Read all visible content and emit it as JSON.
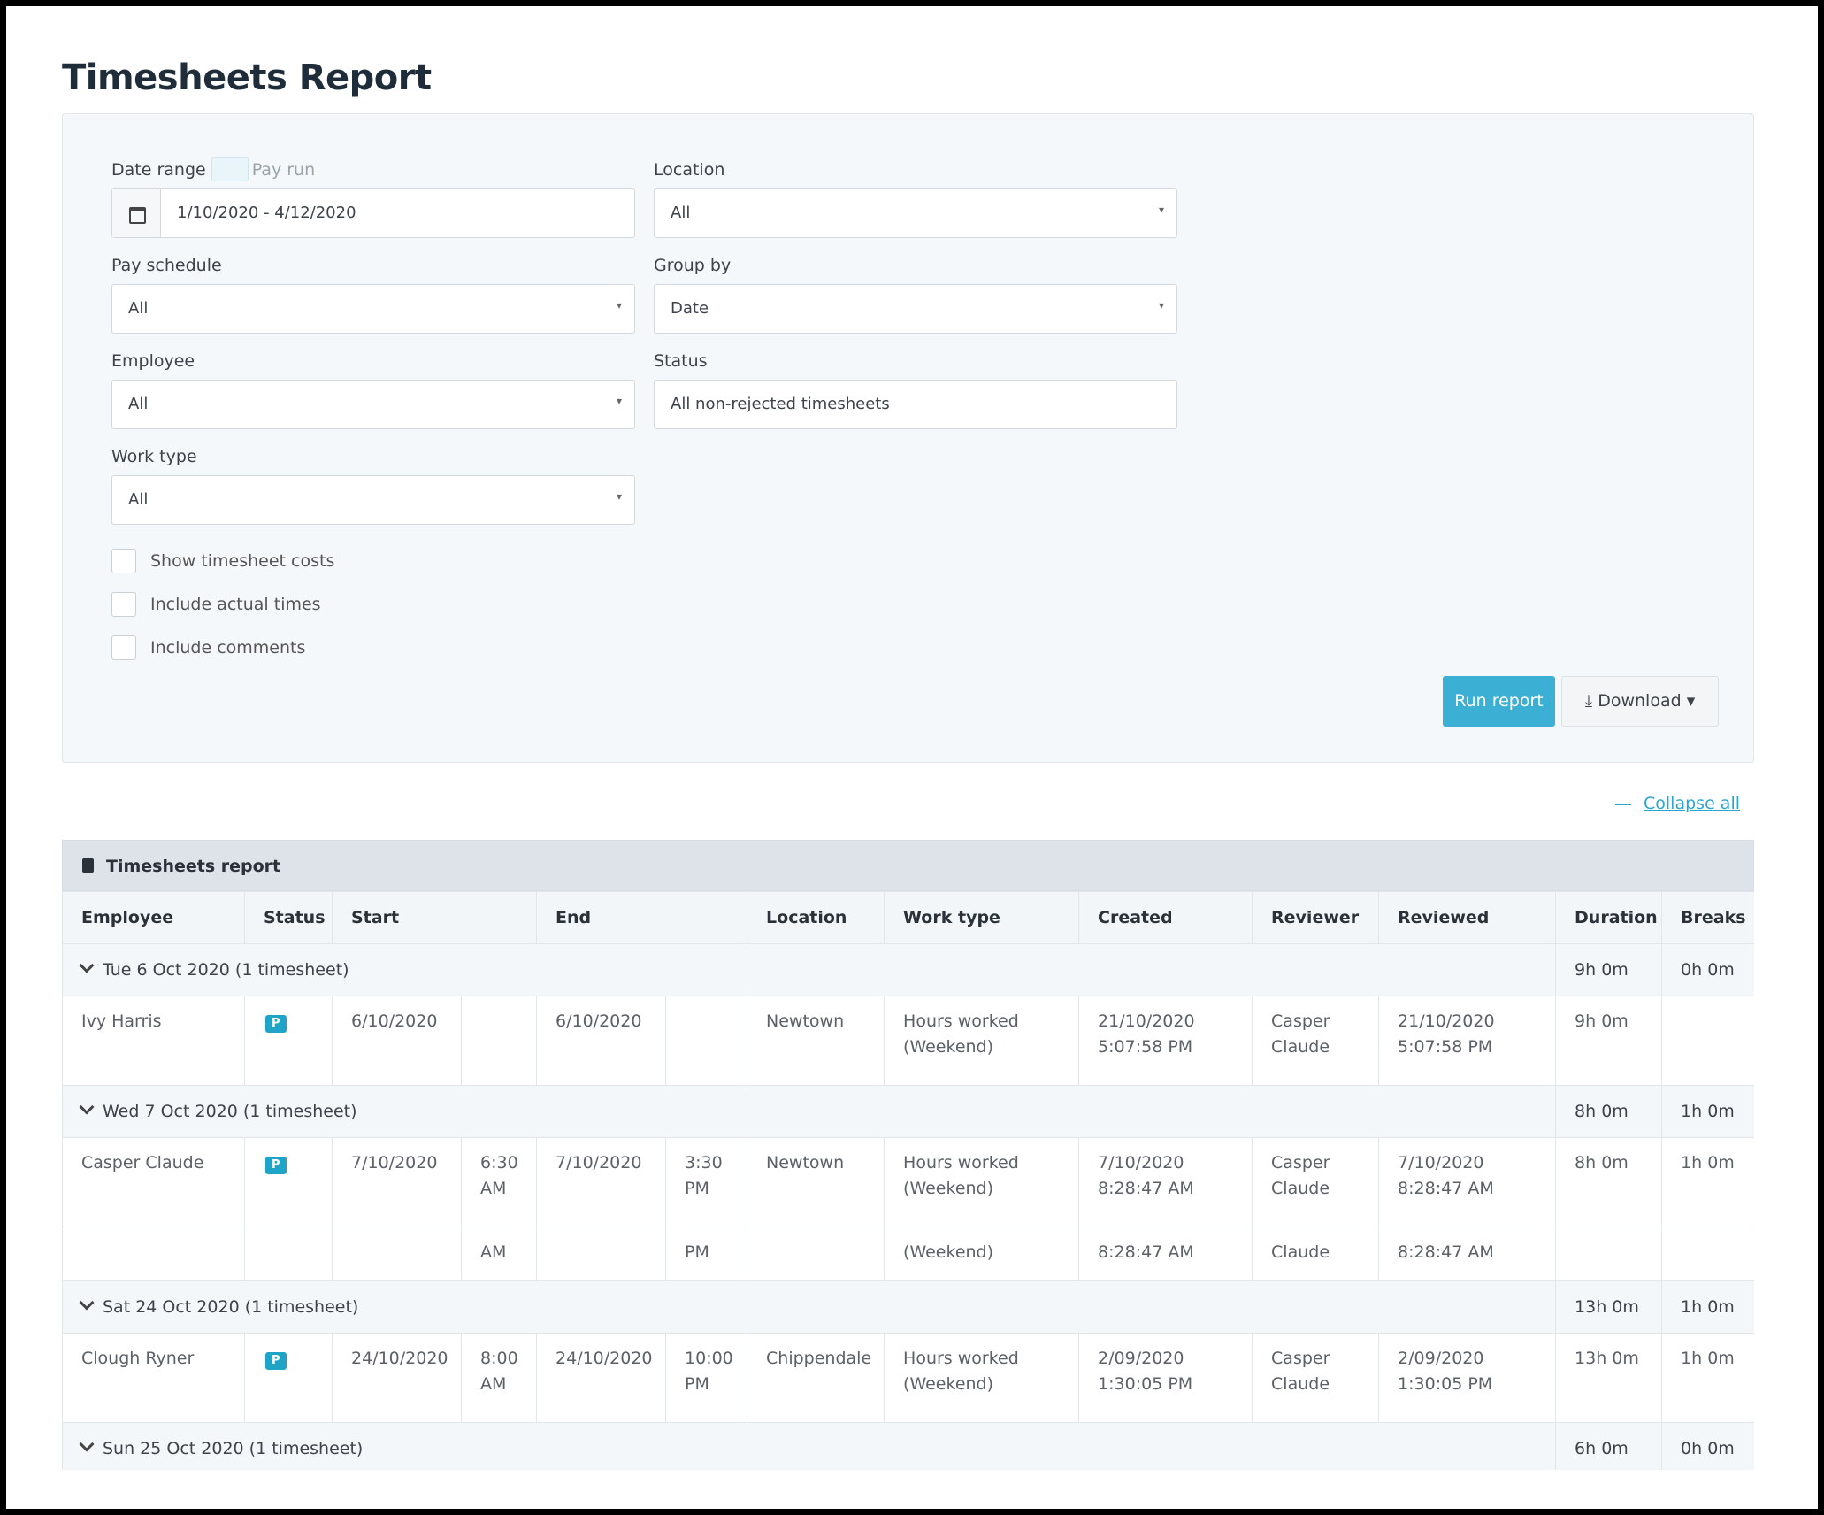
{
  "title": "Timesheets Report",
  "filters": [
    {
      "kind": "date",
      "label": "Date range",
      "toggle": "Pay run",
      "value": "1/10/2020 - 4/12/2020"
    },
    {
      "kind": "select",
      "label": "Location",
      "value": "All"
    },
    {
      "kind": "select",
      "label": "Pay schedule",
      "value": "All"
    },
    {
      "kind": "select",
      "label": "Group by",
      "value": "Date"
    },
    {
      "kind": "select",
      "label": "Employee",
      "value": "All"
    },
    {
      "kind": "text",
      "label": "Status",
      "value": "All non-rejected timesheets"
    },
    {
      "kind": "select",
      "label": "Work type",
      "value": "All"
    }
  ],
  "checkboxes": [
    "Show timesheet costs",
    "Include actual times",
    "Include comments"
  ],
  "buttons": {
    "run": "Run report",
    "download": "Download"
  },
  "collapse_all": "Collapse all",
  "report": {
    "title": "Timesheets report",
    "columns": [
      "Employee",
      "Status",
      "Start",
      "End",
      "Location",
      "Work type",
      "Created",
      "Reviewer",
      "Reviewed",
      "Duration",
      "Breaks"
    ],
    "groups": [
      {
        "label": "Tue 6 Oct 2020 (1 timesheet)",
        "duration": "9h 0m",
        "breaks": "0h 0m",
        "rows": [
          [
            "Ivy Harris",
            "P",
            "6/10/2020",
            null,
            "6/10/2020",
            null,
            "Newtown",
            "Hours worked\n(Weekend)",
            "21/10/2020\n5:07:58 PM",
            "Casper\nClaude",
            "21/10/2020\n5:07:58 PM",
            "9h 0m",
            null
          ]
        ]
      },
      {
        "label": "Wed 7 Oct 2020 (1 timesheet)",
        "duration": "8h 0m",
        "breaks": "1h 0m",
        "rows": [
          [
            "Casper Claude",
            "P",
            "7/10/2020",
            "6:30\nAM",
            "7/10/2020",
            "3:30\nPM",
            "Newtown",
            "Hours worked\n(Weekend)",
            "7/10/2020\n8:28:47 AM",
            "Casper\nClaude",
            "7/10/2020\n8:28:47 AM",
            "8h 0m",
            "1h 0m"
          ],
          [
            null,
            null,
            null,
            "AM",
            null,
            "PM",
            null,
            "(Weekend)",
            "8:28:47 AM",
            "Claude",
            "8:28:47 AM",
            null,
            null
          ]
        ]
      },
      {
        "label": "Sat 24 Oct 2020 (1 timesheet)",
        "duration": "13h 0m",
        "breaks": "1h 0m",
        "rows": [
          [
            "Clough Ryner",
            "P",
            "24/10/2020",
            "8:00\nAM",
            "24/10/2020",
            "10:00\nPM",
            "Chippendale",
            "Hours worked\n(Weekend)",
            "2/09/2020\n1:30:05 PM",
            "Casper\nClaude",
            "2/09/2020\n1:30:05 PM",
            "13h 0m",
            "1h 0m"
          ]
        ]
      },
      {
        "label": "Sun 25 Oct 2020 (1 timesheet)",
        "duration": "6h 0m",
        "breaks": "0h 0m",
        "rows": []
      }
    ]
  }
}
